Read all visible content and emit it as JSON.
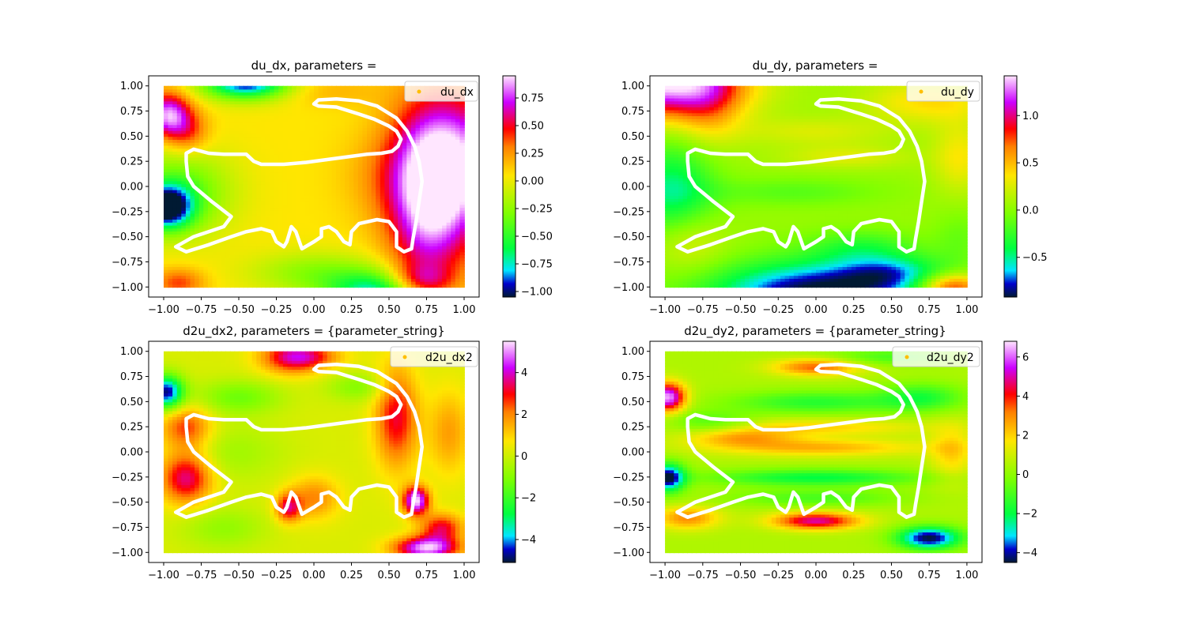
{
  "chart_data": [
    {
      "type": "scatter",
      "title": "du_dx, parameters = ",
      "legend": {
        "label": "du_dx",
        "placement": "top-right"
      },
      "xlim": [
        -1.1,
        1.1
      ],
      "ylim": [
        -1.1,
        1.1
      ],
      "xticks": [
        -1.0,
        -0.75,
        -0.5,
        -0.25,
        0.0,
        0.25,
        0.5,
        0.75,
        1.0
      ],
      "xtick_labels": [
        "−1.00",
        "−0.75",
        "−0.50",
        "−0.25",
        "0.00",
        "0.25",
        "0.50",
        "0.75",
        "1.00"
      ],
      "yticks": [
        -1.0,
        -0.75,
        -0.5,
        -0.25,
        0.0,
        0.25,
        0.5,
        0.75,
        1.0
      ],
      "ytick_labels": [
        "−1.00",
        "−0.75",
        "−0.50",
        "−0.25",
        "0.00",
        "0.25",
        "0.50",
        "0.75",
        "1.00"
      ],
      "colorbar": {
        "range": [
          -1.05,
          0.95
        ],
        "ticks": [
          -1.0,
          -0.75,
          -0.5,
          -0.25,
          0.0,
          0.25,
          0.5,
          0.75
        ],
        "tick_labels": [
          "−1.00",
          "−0.75",
          "−0.50",
          "−0.25",
          "0.00",
          "0.25",
          "0.50",
          "0.75"
        ]
      },
      "field": {
        "base": 0.05,
        "bumps": [
          [
            0.92,
            0.2,
            0.25,
            0.5,
            0.85
          ],
          [
            0.75,
            -0.2,
            0.18,
            0.6,
            0.6
          ],
          [
            0.7,
            -0.95,
            0.15,
            0.12,
            0.55
          ],
          [
            -0.97,
            0.72,
            0.1,
            0.15,
            0.8
          ],
          [
            -0.84,
            0.55,
            0.1,
            0.15,
            0.35
          ],
          [
            -0.98,
            -0.2,
            0.12,
            0.15,
            -1.05
          ],
          [
            -0.9,
            -0.05,
            0.25,
            0.3,
            -0.45
          ],
          [
            -0.45,
            1.05,
            0.2,
            0.12,
            -1.1
          ],
          [
            0.45,
            -1.05,
            0.25,
            0.15,
            -0.85
          ],
          [
            0.0,
            -0.85,
            0.3,
            0.15,
            -0.3
          ],
          [
            -0.9,
            -0.95,
            0.12,
            0.1,
            0.35
          ],
          [
            0.1,
            0.95,
            0.25,
            0.1,
            0.12
          ],
          [
            0.45,
            0.1,
            0.2,
            0.3,
            0.12
          ]
        ]
      }
    },
    {
      "type": "scatter",
      "title": "du_dy, parameters = ",
      "legend": {
        "label": "du_dy",
        "placement": "top-right"
      },
      "xlim": [
        -1.1,
        1.1
      ],
      "ylim": [
        -1.1,
        1.1
      ],
      "xticks": [
        -1.0,
        -0.75,
        -0.5,
        -0.25,
        0.0,
        0.25,
        0.5,
        0.75,
        1.0
      ],
      "xtick_labels": [
        "−1.00",
        "−0.75",
        "−0.50",
        "−0.25",
        "0.00",
        "0.25",
        "0.50",
        "0.75",
        "1.00"
      ],
      "yticks": [
        -1.0,
        -0.75,
        -0.5,
        -0.25,
        0.0,
        0.25,
        0.5,
        0.75,
        1.0
      ],
      "ytick_labels": [
        "−1.00",
        "−0.75",
        "−0.50",
        "−0.25",
        "0.00",
        "0.25",
        "0.50",
        "0.75",
        "1.00"
      ],
      "colorbar": {
        "range": [
          -0.92,
          1.42
        ],
        "ticks": [
          -0.5,
          0.0,
          0.5,
          1.0
        ],
        "tick_labels": [
          "−0.5",
          "0.0",
          "0.5",
          "1.0"
        ]
      },
      "field": {
        "base": 0.05,
        "bumps": [
          [
            -1.0,
            1.05,
            0.35,
            0.25,
            1.4
          ],
          [
            -0.7,
            0.8,
            0.15,
            0.3,
            0.3
          ],
          [
            0.0,
            -1.05,
            0.5,
            0.22,
            -1.0
          ],
          [
            -0.95,
            -0.05,
            0.2,
            0.35,
            -0.55
          ],
          [
            -0.85,
            -0.55,
            0.18,
            0.22,
            0.3
          ],
          [
            0.9,
            -1.0,
            0.15,
            0.1,
            0.9
          ],
          [
            0.75,
            0.85,
            0.3,
            0.15,
            0.35
          ],
          [
            0.0,
            0.55,
            0.35,
            0.1,
            0.2
          ],
          [
            0.2,
            0.3,
            0.3,
            0.08,
            0.22
          ],
          [
            -0.15,
            -0.05,
            0.4,
            0.1,
            -0.2
          ],
          [
            0.3,
            -0.6,
            0.25,
            0.12,
            -0.3
          ],
          [
            0.95,
            0.3,
            0.12,
            0.25,
            0.3
          ],
          [
            0.95,
            -0.5,
            0.12,
            0.2,
            -0.15
          ],
          [
            0.5,
            -0.85,
            0.25,
            0.12,
            -0.45
          ]
        ]
      }
    },
    {
      "type": "scatter",
      "title": "d2u_dx2, parameters = {parameter_string}",
      "legend": {
        "label": "d2u_dx2",
        "placement": "top-right"
      },
      "xlim": [
        -1.1,
        1.1
      ],
      "ylim": [
        -1.1,
        1.1
      ],
      "xticks": [
        -1.0,
        -0.75,
        -0.5,
        -0.25,
        0.0,
        0.25,
        0.5,
        0.75,
        1.0
      ],
      "xtick_labels": [
        "−1.00",
        "−0.75",
        "−0.50",
        "−0.25",
        "0.00",
        "0.25",
        "0.50",
        "0.75",
        "1.00"
      ],
      "yticks": [
        -1.0,
        -0.75,
        -0.5,
        -0.25,
        0.0,
        0.25,
        0.5,
        0.75,
        1.0
      ],
      "ytick_labels": [
        "−1.00",
        "−0.75",
        "−0.50",
        "−0.25",
        "0.00",
        "0.25",
        "0.50",
        "0.75",
        "1.00"
      ],
      "colorbar": {
        "range": [
          -5.1,
          5.5
        ],
        "ticks": [
          -4,
          -2,
          0,
          2,
          4
        ],
        "tick_labels": [
          "−4",
          "−2",
          "0",
          "2",
          "4"
        ]
      },
      "field": {
        "base": 0.2,
        "bumps": [
          [
            -0.98,
            0.6,
            0.08,
            0.12,
            -5.0
          ],
          [
            -0.85,
            0.25,
            0.12,
            0.15,
            2.5
          ],
          [
            -0.85,
            -0.25,
            0.12,
            0.18,
            3.5
          ],
          [
            -0.15,
            0.95,
            0.15,
            0.12,
            3.0
          ],
          [
            0.55,
            0.35,
            0.1,
            0.35,
            3.0
          ],
          [
            0.68,
            -0.48,
            0.06,
            0.1,
            5.2
          ],
          [
            0.75,
            -0.95,
            0.15,
            0.08,
            5.0
          ],
          [
            0.85,
            -0.75,
            0.1,
            0.1,
            3.0
          ],
          [
            -0.17,
            -0.55,
            0.06,
            0.1,
            3.0
          ],
          [
            0.0,
            -0.45,
            0.12,
            0.15,
            1.8
          ],
          [
            0.9,
            0.2,
            0.1,
            0.3,
            1.5
          ],
          [
            -0.5,
            0.55,
            0.2,
            0.12,
            -1.5
          ],
          [
            -0.55,
            0.0,
            0.25,
            0.2,
            -0.8
          ],
          [
            0.3,
            0.65,
            0.15,
            0.1,
            -1.2
          ],
          [
            0.0,
            0.95,
            0.15,
            0.08,
            1.5
          ],
          [
            -0.6,
            -0.75,
            0.2,
            0.15,
            -1.0
          ]
        ]
      }
    },
    {
      "type": "scatter",
      "title": "d2u_dy2, parameters = {parameter_string}",
      "legend": {
        "label": "d2u_dy2",
        "placement": "top-right"
      },
      "xlim": [
        -1.1,
        1.1
      ],
      "ylim": [
        -1.1,
        1.1
      ],
      "xticks": [
        -1.0,
        -0.75,
        -0.5,
        -0.25,
        0.0,
        0.25,
        0.5,
        0.75,
        1.0
      ],
      "xtick_labels": [
        "−1.00",
        "−0.75",
        "−0.50",
        "−0.25",
        "0.00",
        "0.25",
        "0.50",
        "0.75",
        "1.00"
      ],
      "yticks": [
        -1.0,
        -0.75,
        -0.5,
        -0.25,
        0.0,
        0.25,
        0.5,
        0.75,
        1.0
      ],
      "ytick_labels": [
        "−1.00",
        "−0.75",
        "−0.50",
        "−0.25",
        "0.00",
        "0.25",
        "0.50",
        "0.75",
        "1.00"
      ],
      "colorbar": {
        "range": [
          -4.5,
          6.8
        ],
        "ticks": [
          -4,
          -2,
          0,
          2,
          4,
          6
        ],
        "tick_labels": [
          "−4",
          "−2",
          "0",
          "2",
          "4",
          "6"
        ]
      },
      "field": {
        "base": 0.5,
        "bumps": [
          [
            -0.98,
            0.55,
            0.08,
            0.1,
            6.0
          ],
          [
            -0.98,
            -0.25,
            0.08,
            0.1,
            -5.0
          ],
          [
            0.75,
            -0.85,
            0.15,
            0.08,
            -5.0
          ],
          [
            0.0,
            -0.68,
            0.2,
            0.06,
            4.5
          ],
          [
            0.0,
            0.85,
            0.2,
            0.06,
            3.0
          ],
          [
            0.0,
            0.5,
            0.4,
            0.08,
            -2.0
          ],
          [
            0.0,
            0.25,
            0.5,
            0.06,
            1.5
          ],
          [
            0.0,
            0.05,
            0.5,
            0.06,
            2.0
          ],
          [
            0.0,
            -0.25,
            0.5,
            0.06,
            -2.5
          ],
          [
            0.0,
            -0.45,
            0.4,
            0.06,
            -1.5
          ],
          [
            -0.5,
            0.15,
            0.25,
            0.06,
            2.0
          ],
          [
            0.7,
            0.55,
            0.2,
            0.1,
            -2.0
          ],
          [
            0.5,
            0.95,
            0.3,
            0.06,
            -1.5
          ],
          [
            -0.7,
            0.3,
            0.2,
            0.08,
            -1.5
          ],
          [
            -0.85,
            -0.65,
            0.15,
            0.08,
            2.5
          ],
          [
            0.9,
            0.0,
            0.1,
            0.2,
            1.5
          ]
        ]
      }
    }
  ],
  "overlay_curve": [
    [
      0.0,
      0.82
    ],
    [
      0.03,
      0.86
    ],
    [
      0.15,
      0.87
    ],
    [
      0.3,
      0.85
    ],
    [
      0.42,
      0.8
    ],
    [
      0.55,
      0.68
    ],
    [
      0.62,
      0.55
    ],
    [
      0.67,
      0.4
    ],
    [
      0.7,
      0.25
    ],
    [
      0.72,
      0.05
    ],
    [
      0.7,
      -0.15
    ],
    [
      0.68,
      -0.35
    ],
    [
      0.66,
      -0.52
    ],
    [
      0.65,
      -0.62
    ],
    [
      0.6,
      -0.65
    ],
    [
      0.55,
      -0.6
    ],
    [
      0.55,
      -0.45
    ],
    [
      0.5,
      -0.35
    ],
    [
      0.42,
      -0.33
    ],
    [
      0.3,
      -0.37
    ],
    [
      0.25,
      -0.45
    ],
    [
      0.24,
      -0.58
    ],
    [
      0.2,
      -0.55
    ],
    [
      0.15,
      -0.45
    ],
    [
      0.1,
      -0.4
    ],
    [
      0.05,
      -0.42
    ],
    [
      0.05,
      -0.5
    ],
    [
      0.0,
      -0.55
    ],
    [
      -0.08,
      -0.62
    ],
    [
      -0.12,
      -0.45
    ],
    [
      -0.15,
      -0.4
    ],
    [
      -0.18,
      -0.55
    ],
    [
      -0.2,
      -0.6
    ],
    [
      -0.25,
      -0.55
    ],
    [
      -0.28,
      -0.45
    ],
    [
      -0.35,
      -0.42
    ],
    [
      -0.45,
      -0.45
    ],
    [
      -0.55,
      -0.5
    ],
    [
      -0.7,
      -0.58
    ],
    [
      -0.85,
      -0.65
    ],
    [
      -0.92,
      -0.6
    ],
    [
      -0.8,
      -0.5
    ],
    [
      -0.6,
      -0.4
    ],
    [
      -0.55,
      -0.3
    ],
    [
      -0.68,
      -0.15
    ],
    [
      -0.8,
      0.0
    ],
    [
      -0.84,
      0.1
    ],
    [
      -0.85,
      0.25
    ],
    [
      -0.85,
      0.33
    ],
    [
      -0.8,
      0.37
    ],
    [
      -0.7,
      0.33
    ],
    [
      -0.6,
      0.32
    ],
    [
      -0.45,
      0.32
    ],
    [
      -0.4,
      0.25
    ],
    [
      -0.35,
      0.22
    ],
    [
      -0.2,
      0.22
    ],
    [
      -0.05,
      0.24
    ],
    [
      0.2,
      0.29
    ],
    [
      0.35,
      0.32
    ],
    [
      0.45,
      0.33
    ],
    [
      0.52,
      0.35
    ],
    [
      0.56,
      0.4
    ],
    [
      0.58,
      0.47
    ],
    [
      0.55,
      0.55
    ],
    [
      0.5,
      0.6
    ],
    [
      0.4,
      0.67
    ],
    [
      0.3,
      0.72
    ],
    [
      0.15,
      0.79
    ],
    [
      0.03,
      0.8
    ],
    [
      0.0,
      0.82
    ]
  ]
}
